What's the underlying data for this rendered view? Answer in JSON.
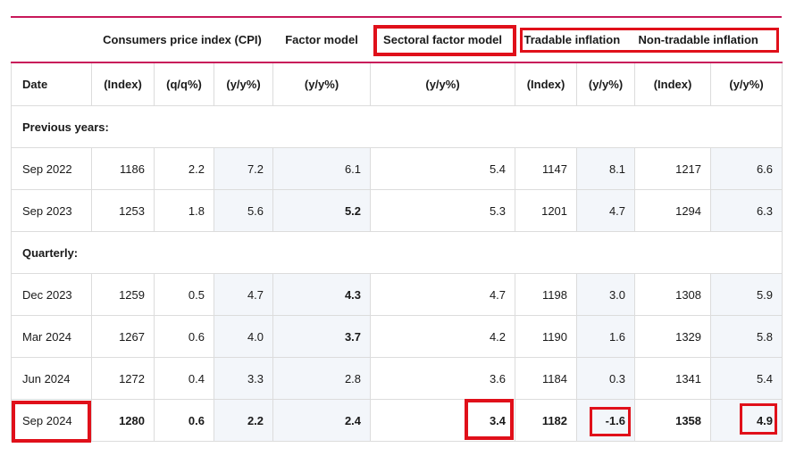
{
  "groups": {
    "cpi": "Consumers price index (CPI)",
    "factor_model": "Factor model",
    "sectoral_factor_model": "Sectoral factor model",
    "tradable": "Tradable inflation",
    "nontradable": "Non-tradable inflation"
  },
  "units": [
    "Date",
    "(Index)",
    "(q/q%)",
    "(y/y%)",
    "(y/y%)",
    "(y/y%)",
    "(Index)",
    "(y/y%)",
    "(Index)",
    "(y/y%)"
  ],
  "sections": {
    "previous": "Previous years:",
    "quarterly": "Quarterly:"
  },
  "rows_previous": [
    {
      "date": "Sep 2022",
      "cpi_index": "1186",
      "cpi_qq": "2.2",
      "cpi_yy": "7.2",
      "factor": "6.1",
      "sectoral": "5.4",
      "trad_index": "1147",
      "trad_yy": "8.1",
      "nontrad_index": "1217",
      "nontrad_yy": "6.6"
    },
    {
      "date": "Sep 2023",
      "cpi_index": "1253",
      "cpi_qq": "1.8",
      "cpi_yy": "5.6",
      "factor": "5.2",
      "sectoral": "5.3",
      "trad_index": "1201",
      "trad_yy": "4.7",
      "nontrad_index": "1294",
      "nontrad_yy": "6.3"
    }
  ],
  "rows_quarterly": [
    {
      "date": "Dec 2023",
      "cpi_index": "1259",
      "cpi_qq": "0.5",
      "cpi_yy": "4.7",
      "factor": "4.3",
      "sectoral": "4.7",
      "trad_index": "1198",
      "trad_yy": "3.0",
      "nontrad_index": "1308",
      "nontrad_yy": "5.9"
    },
    {
      "date": "Mar 2024",
      "cpi_index": "1267",
      "cpi_qq": "0.6",
      "cpi_yy": "4.0",
      "factor": "3.7",
      "sectoral": "4.2",
      "trad_index": "1190",
      "trad_yy": "1.6",
      "nontrad_index": "1329",
      "nontrad_yy": "5.8"
    },
    {
      "date": "Jun 2024",
      "cpi_index": "1272",
      "cpi_qq": "0.4",
      "cpi_yy": "3.3",
      "factor": "2.8",
      "sectoral": "3.6",
      "trad_index": "1184",
      "trad_yy": "0.3",
      "nontrad_index": "1341",
      "nontrad_yy": "5.4"
    },
    {
      "date": "Sep 2024",
      "cpi_index": "1280",
      "cpi_qq": "0.6",
      "cpi_yy": "2.2",
      "factor": "2.4",
      "sectoral": "3.4",
      "trad_index": "1182",
      "trad_yy": "-1.6",
      "nontrad_index": "1358",
      "nontrad_yy": "4.9"
    }
  ],
  "colors": {
    "accent_line": "#c8185a",
    "highlight_box": "#e0101a",
    "shade": "#f3f6fa"
  }
}
